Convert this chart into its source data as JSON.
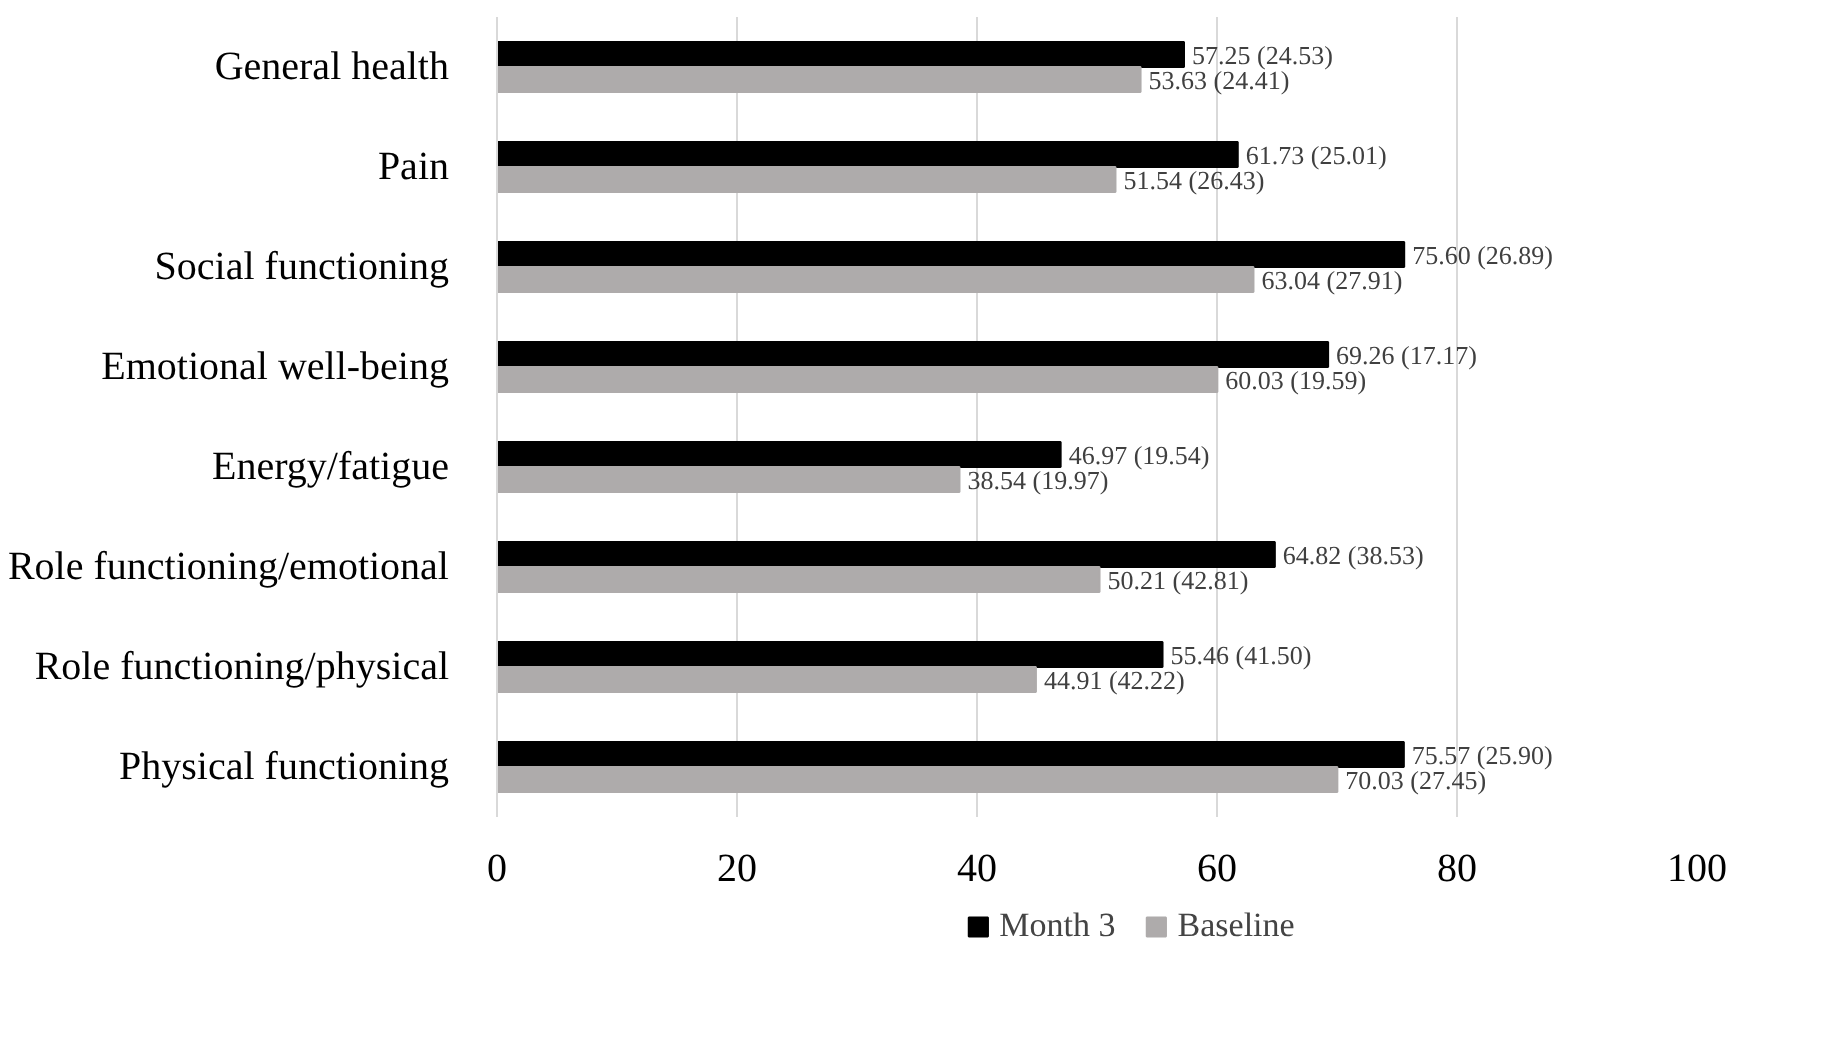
{
  "chart_data": {
    "type": "bar",
    "orientation": "horizontal",
    "categories": [
      "General health",
      "Pain",
      "Social functioning",
      "Emotional well-being",
      "Energy/fatigue",
      "Role functioning/emotional",
      "Role functioning/physical",
      "Physical functioning"
    ],
    "series": [
      {
        "name": "Month 3",
        "color": "#000000",
        "values": [
          57.25,
          61.73,
          75.6,
          69.26,
          46.97,
          64.82,
          55.46,
          75.57
        ],
        "value_labels": [
          "57.25 (24.53)",
          "61.73 (25.01)",
          "75.60 (26.89)",
          "69.26 (17.17)",
          "46.97 (19.54)",
          "64.82 (38.53)",
          "55.46 (41.50)",
          "75.57 (25.90)"
        ]
      },
      {
        "name": "Baseline",
        "color": "#aeabab",
        "values": [
          53.63,
          51.54,
          63.04,
          60.03,
          38.54,
          50.21,
          44.91,
          70.03
        ],
        "value_labels": [
          "53.63 (24.41)",
          "51.54 (26.43)",
          "63.04 (27.91)",
          "60.03 (19.59)",
          "38.54 (19.97)",
          "50.21 (42.81)",
          "44.91 (42.22)",
          "70.03 (27.45)"
        ]
      }
    ],
    "xlim": [
      0,
      100
    ],
    "xticks": [
      0,
      20,
      40,
      60,
      80,
      100
    ],
    "grid": "x",
    "legend": "bottom"
  }
}
